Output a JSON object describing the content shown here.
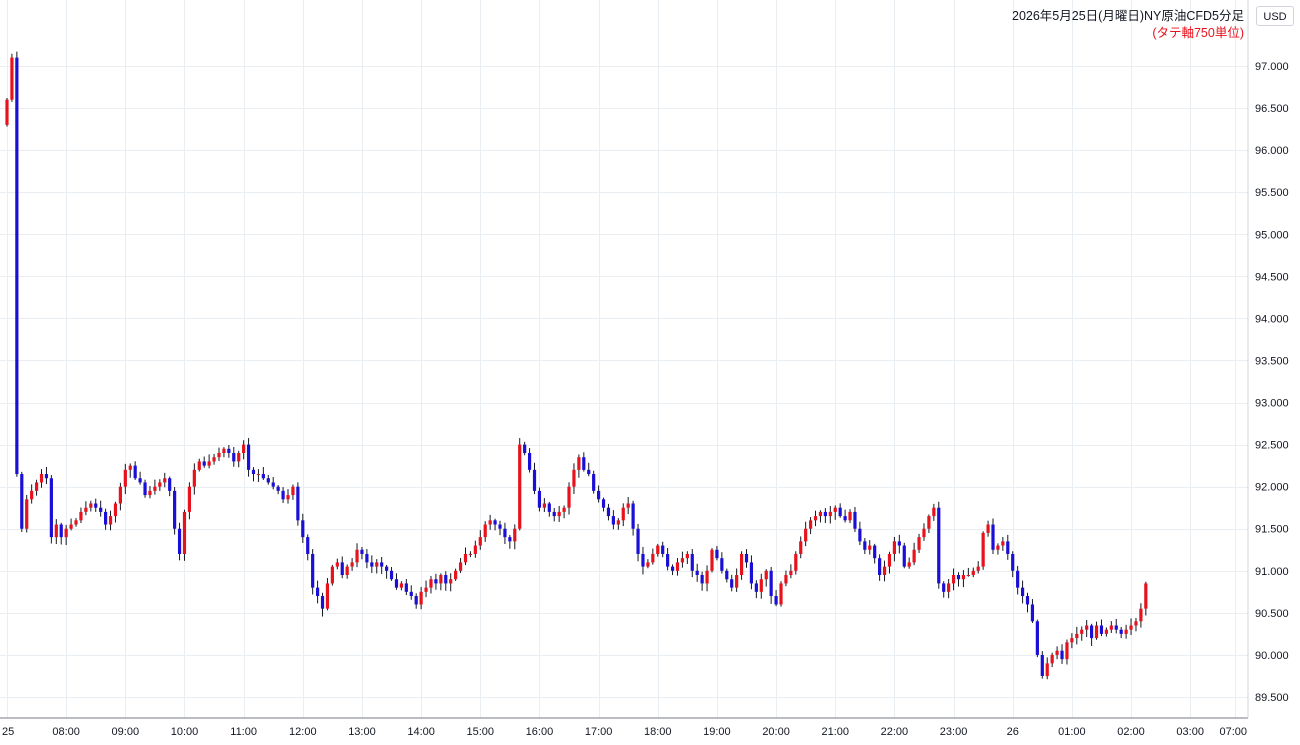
{
  "currency_button": {
    "label": "USD"
  },
  "chart_data": {
    "type": "candlestick",
    "title": "2026年5月25日(月曜日)NY原油CFD5分足",
    "subtitle": "(タテ軸750単位)",
    "y_ticks": [
      "97.000",
      "96.500",
      "96.000",
      "95.500",
      "95.000",
      "94.500",
      "94.000",
      "93.500",
      "93.000",
      "92.500",
      "92.000",
      "91.500",
      "91.000",
      "90.500",
      "90.000",
      "89.500"
    ],
    "y_tick_values": [
      97.0,
      96.5,
      96.0,
      95.5,
      95.0,
      94.5,
      94.0,
      93.5,
      93.0,
      92.5,
      92.0,
      91.5,
      91.0,
      90.5,
      90.0,
      89.5
    ],
    "x_ticks": [
      {
        "label": "25",
        "index": 0
      },
      {
        "label": "08:00",
        "index": 12
      },
      {
        "label": "09:00",
        "index": 24
      },
      {
        "label": "10:00",
        "index": 36
      },
      {
        "label": "11:00",
        "index": 48
      },
      {
        "label": "12:00",
        "index": 60
      },
      {
        "label": "13:00",
        "index": 72
      },
      {
        "label": "14:00",
        "index": 84
      },
      {
        "label": "15:00",
        "index": 96
      },
      {
        "label": "16:00",
        "index": 108
      },
      {
        "label": "17:00",
        "index": 120
      },
      {
        "label": "18:00",
        "index": 132
      },
      {
        "label": "19:00",
        "index": 144
      },
      {
        "label": "20:00",
        "index": 156
      },
      {
        "label": "21:00",
        "index": 168
      },
      {
        "label": "22:00",
        "index": 180
      },
      {
        "label": "23:00",
        "index": 192
      },
      {
        "label": "26",
        "index": 204
      },
      {
        "label": "01:00",
        "index": 216
      },
      {
        "label": "02:00",
        "index": 228
      },
      {
        "label": "03:00",
        "index": 240
      },
      {
        "label": "07:00",
        "index": 249
      }
    ],
    "ylim": [
      89.3,
      97.7
    ],
    "grid": true,
    "up_color": "#e8121c",
    "down_color": "#1a0fd6",
    "wick_color": "#131722",
    "grid_color": "#e9eef2",
    "closes": [
      96.6,
      97.1,
      92.15,
      91.5,
      91.85,
      91.95,
      92.05,
      92.15,
      92.1,
      91.4,
      91.55,
      91.4,
      91.5,
      91.55,
      91.6,
      91.7,
      91.75,
      91.8,
      91.75,
      91.7,
      91.55,
      91.65,
      91.8,
      92.0,
      92.2,
      92.25,
      92.1,
      92.05,
      91.9,
      91.95,
      92.0,
      92.05,
      92.1,
      91.95,
      91.5,
      91.2,
      91.7,
      92.0,
      92.2,
      92.3,
      92.25,
      92.3,
      92.35,
      92.4,
      92.45,
      92.4,
      92.3,
      92.4,
      92.5,
      92.2,
      92.15,
      92.15,
      92.1,
      92.05,
      92.0,
      91.95,
      91.85,
      91.9,
      92.0,
      91.6,
      91.4,
      91.2,
      90.8,
      90.7,
      90.55,
      90.85,
      91.05,
      91.1,
      90.95,
      91.05,
      91.1,
      91.25,
      91.2,
      91.1,
      91.05,
      91.1,
      91.05,
      91.0,
      90.9,
      90.8,
      90.85,
      90.75,
      90.7,
      90.6,
      90.75,
      90.8,
      90.9,
      90.85,
      90.95,
      90.85,
      90.9,
      91.0,
      91.1,
      91.2,
      91.2,
      91.3,
      91.4,
      91.55,
      91.6,
      91.55,
      91.5,
      91.4,
      91.35,
      91.5,
      92.5,
      92.4,
      92.2,
      91.95,
      91.75,
      91.8,
      91.7,
      91.65,
      91.7,
      91.75,
      92.0,
      92.2,
      92.35,
      92.2,
      92.15,
      91.95,
      91.85,
      91.75,
      91.65,
      91.55,
      91.6,
      91.75,
      91.8,
      91.5,
      91.2,
      91.05,
      91.1,
      91.2,
      91.3,
      91.2,
      91.05,
      91.0,
      91.1,
      91.15,
      91.2,
      91.0,
      90.95,
      90.85,
      91.0,
      91.25,
      91.15,
      91.0,
      90.9,
      90.8,
      90.95,
      91.2,
      91.1,
      90.85,
      90.75,
      90.9,
      91.0,
      90.7,
      90.6,
      90.85,
      90.95,
      91.0,
      91.2,
      91.35,
      91.5,
      91.6,
      91.65,
      91.7,
      91.65,
      91.7,
      91.75,
      91.65,
      91.6,
      91.7,
      91.5,
      91.35,
      91.25,
      91.3,
      91.15,
      90.95,
      91.05,
      91.2,
      91.35,
      91.3,
      91.05,
      91.1,
      91.25,
      91.4,
      91.5,
      91.65,
      91.75,
      90.85,
      90.75,
      90.85,
      90.95,
      90.9,
      90.95,
      90.95,
      91.0,
      91.05,
      91.45,
      91.55,
      91.25,
      91.3,
      91.35,
      91.2,
      91.0,
      90.8,
      90.7,
      90.6,
      90.4,
      90.0,
      89.75,
      89.9,
      90.0,
      90.05,
      89.95,
      90.15,
      90.2,
      90.25,
      90.3,
      90.35,
      90.2,
      90.35,
      90.25,
      90.3,
      90.35,
      90.3,
      90.25,
      90.3,
      90.35,
      90.4,
      90.55,
      90.85
    ]
  }
}
